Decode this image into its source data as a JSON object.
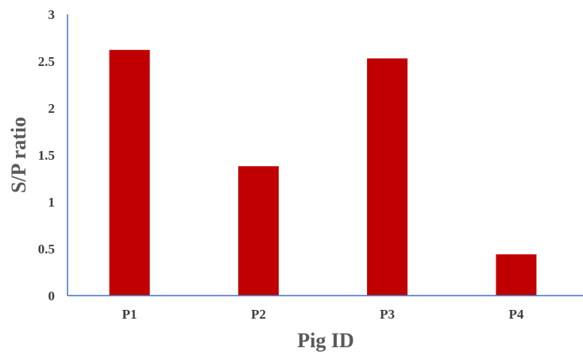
{
  "chart_data": {
    "type": "bar",
    "title": "",
    "xlabel": "Pig ID",
    "ylabel": "S/P ratio",
    "categories": [
      "P1",
      "P2",
      "P3",
      "P4"
    ],
    "values": [
      2.62,
      1.38,
      2.53,
      0.44
    ],
    "ylim": [
      0,
      3
    ],
    "yticks": [
      "0",
      "0.5",
      "1",
      "1.5",
      "2",
      "2.5",
      "3"
    ],
    "grid": false,
    "legend": "none",
    "bar_color": "#c00000",
    "axis_color": "#4472c4"
  }
}
